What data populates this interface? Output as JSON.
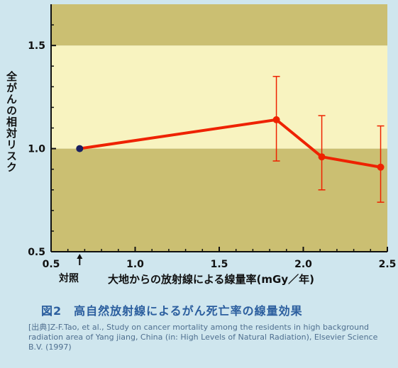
{
  "chart_data": {
    "type": "line",
    "ylabel": "全がんの相対リスク",
    "xlabel": "大地からの放射線による線量率(mGy／年)",
    "xlim": [
      0.5,
      2.5
    ],
    "ylim": [
      0.5,
      1.7
    ],
    "x_ticks": [
      "0.5",
      "1.0",
      "1.5",
      "2.0",
      "2.5"
    ],
    "y_ticks": [
      "0.5",
      "1.0",
      "1.5"
    ],
    "control": {
      "label": "対照",
      "x": 0.67,
      "y": 1.0
    },
    "series": [
      {
        "points": [
          {
            "x": 0.67,
            "y": 1.0
          },
          {
            "x": 1.84,
            "y": 1.14,
            "err_low": 0.94,
            "err_high": 1.35
          },
          {
            "x": 2.11,
            "y": 0.96,
            "err_low": 0.8,
            "err_high": 1.16
          },
          {
            "x": 2.46,
            "y": 0.91,
            "err_low": 0.74,
            "err_high": 1.11
          }
        ],
        "color": "#ee2200"
      }
    ],
    "bands": [
      {
        "from": 0.5,
        "to": 1.0,
        "color": "#cbbf72"
      },
      {
        "from": 1.0,
        "to": 1.5,
        "color": "#f8f3c0"
      },
      {
        "from": 1.5,
        "to": 1.7,
        "color": "#cbbf72"
      }
    ],
    "axis_color": "#111111",
    "control_marker_color": "#1a2060"
  },
  "figure_title": "図2　高自然放射線によるがん死亡率の線量効果",
  "source": "[出典]Z-F.Tao, et al., Study on cancer mortality among the residents in high background radiation area of Yang jiang, China (in: High Levels of Natural Radiation), Elsevier Science B.V. (1997)"
}
